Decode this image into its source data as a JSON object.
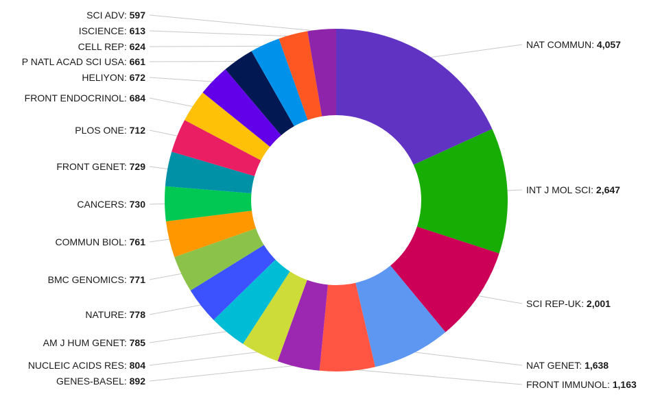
{
  "chart_data": {
    "type": "pie",
    "variant": "donut",
    "title": "",
    "legend": "none",
    "slices": [
      {
        "label": "NAT COMMUN",
        "value": 4057,
        "display": "4,057",
        "color": "#6033c3"
      },
      {
        "label": "INT J MOL SCI",
        "value": 2647,
        "display": "2,647",
        "color": "#17ad04"
      },
      {
        "label": "SCI REP-UK",
        "value": 2001,
        "display": "2,001",
        "color": "#cc0057"
      },
      {
        "label": "NAT GENET",
        "value": 1638,
        "display": "1,638",
        "color": "#5e97f2"
      },
      {
        "label": "FRONT IMMUNOL",
        "value": 1163,
        "display": "1,163",
        "color": "#ff5542"
      },
      {
        "label": "GENES-BASEL",
        "value": 892,
        "display": "892",
        "color": "#9c27b0"
      },
      {
        "label": "NUCLEIC ACIDS RES",
        "value": 804,
        "display": "804",
        "color": "#cddc39"
      },
      {
        "label": "AM J HUM GENET",
        "value": 785,
        "display": "785",
        "color": "#00bcd4"
      },
      {
        "label": "NATURE",
        "value": 778,
        "display": "778",
        "color": "#3c51ff"
      },
      {
        "label": "BMC GENOMICS",
        "value": 771,
        "display": "771",
        "color": "#8bc34a"
      },
      {
        "label": "COMMUN BIOL",
        "value": 761,
        "display": "761",
        "color": "#ff9800"
      },
      {
        "label": "CANCERS",
        "value": 730,
        "display": "730",
        "color": "#00c853"
      },
      {
        "label": "FRONT GENET",
        "value": 729,
        "display": "729",
        "color": "#0091a7"
      },
      {
        "label": "PLOS ONE",
        "value": 712,
        "display": "712",
        "color": "#e91e63"
      },
      {
        "label": "FRONT ENDOCRINOL",
        "value": 684,
        "display": "684",
        "color": "#ffc107"
      },
      {
        "label": "HELIYON",
        "value": 672,
        "display": "672",
        "color": "#6200ea"
      },
      {
        "label": "P NATL ACAD SCI USA",
        "value": 661,
        "display": "661",
        "color": "#021852"
      },
      {
        "label": "CELL REP",
        "value": 624,
        "display": "624",
        "color": "#0091ea"
      },
      {
        "label": "ISCIENCE",
        "value": 613,
        "display": "613",
        "color": "#ff5722"
      },
      {
        "label": "SCI ADV",
        "value": 597,
        "display": "597",
        "color": "#8e24aa"
      }
    ]
  }
}
